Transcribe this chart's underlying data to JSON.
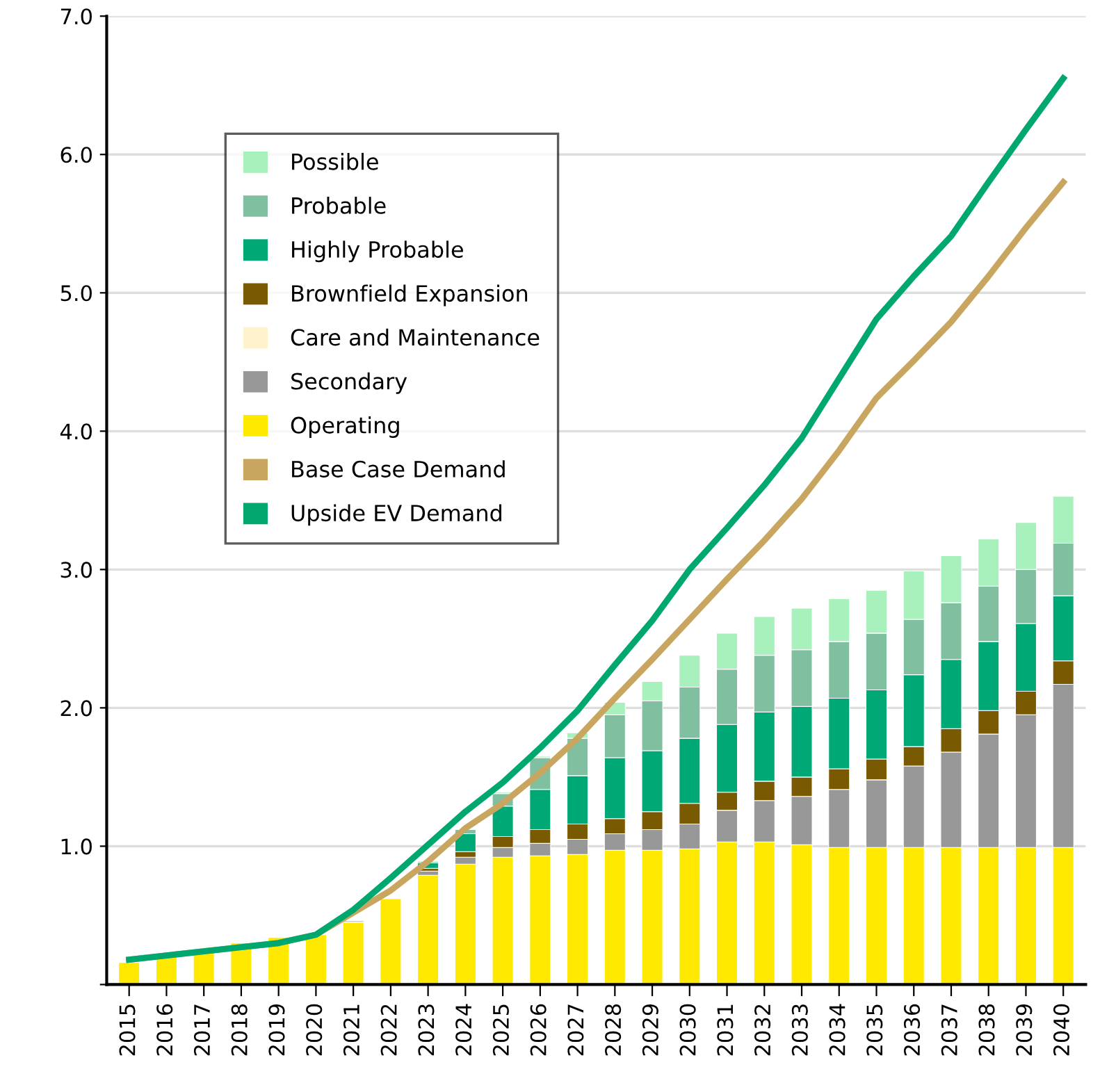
{
  "chart_data": {
    "type": "bar",
    "stacked": true,
    "categories": [
      "2015",
      "2016",
      "2017",
      "2018",
      "2019",
      "2020",
      "2021",
      "2022",
      "2023",
      "2024",
      "2025",
      "2026",
      "2027",
      "2028",
      "2029",
      "2030",
      "2031",
      "2032",
      "2033",
      "2034",
      "2035",
      "2036",
      "2037",
      "2038",
      "2039",
      "2040"
    ],
    "series": [
      {
        "name": "Operating",
        "color": "#ffe900",
        "values": [
          0.16,
          0.2,
          0.23,
          0.3,
          0.34,
          0.36,
          0.45,
          0.62,
          0.79,
          0.87,
          0.92,
          0.93,
          0.94,
          0.97,
          0.97,
          0.98,
          1.03,
          1.03,
          1.01,
          0.99,
          0.99,
          0.99,
          0.99,
          0.99,
          0.99,
          0.99
        ]
      },
      {
        "name": "Secondary",
        "color": "#989898",
        "values": [
          null,
          null,
          null,
          null,
          null,
          null,
          0.01,
          null,
          0.03,
          0.05,
          0.07,
          0.09,
          0.11,
          0.12,
          0.15,
          0.18,
          0.23,
          0.3,
          0.35,
          0.42,
          0.49,
          0.59,
          0.69,
          0.82,
          0.96,
          1.18
        ]
      },
      {
        "name": "Care and Maintenance",
        "color": "#fff2cc",
        "values": [
          null,
          null,
          null,
          null,
          null,
          null,
          null,
          null,
          null,
          null,
          null,
          null,
          null,
          null,
          null,
          null,
          null,
          null,
          null,
          null,
          null,
          null,
          null,
          null,
          null,
          null
        ]
      },
      {
        "name": "Brownfield Expansion",
        "color": "#7a5a00",
        "values": [
          null,
          null,
          null,
          null,
          null,
          null,
          null,
          null,
          0.02,
          0.04,
          0.08,
          0.1,
          0.11,
          0.11,
          0.13,
          0.15,
          0.13,
          0.14,
          0.14,
          0.15,
          0.15,
          0.14,
          0.17,
          0.17,
          0.17,
          0.17
        ]
      },
      {
        "name": "Highly Probable",
        "color": "#00a876",
        "values": [
          null,
          null,
          null,
          null,
          null,
          null,
          null,
          null,
          0.04,
          0.13,
          0.22,
          0.29,
          0.35,
          0.44,
          0.44,
          0.47,
          0.49,
          0.5,
          0.51,
          0.51,
          0.5,
          0.52,
          0.5,
          0.5,
          0.49,
          0.47
        ]
      },
      {
        "name": "Probable",
        "color": "#80c0a0",
        "values": [
          null,
          null,
          null,
          null,
          null,
          null,
          null,
          null,
          0.01,
          0.03,
          0.09,
          0.23,
          0.27,
          0.31,
          0.36,
          0.37,
          0.4,
          0.41,
          0.41,
          0.41,
          0.41,
          0.4,
          0.41,
          0.4,
          0.39,
          0.38
        ]
      },
      {
        "name": "Possible",
        "color": "#a8f0bc",
        "values": [
          null,
          null,
          null,
          null,
          null,
          null,
          null,
          null,
          null,
          null,
          0.01,
          0.01,
          0.04,
          0.09,
          0.14,
          0.23,
          0.26,
          0.28,
          0.3,
          0.31,
          0.31,
          0.35,
          0.34,
          0.34,
          0.34,
          0.34
        ]
      },
      {
        "name": "Base Case Demand",
        "type": "line",
        "color": "#c8a660",
        "values": [
          0.18,
          0.21,
          0.24,
          0.27,
          0.3,
          0.36,
          0.52,
          0.68,
          0.89,
          1.13,
          1.31,
          1.53,
          1.78,
          2.07,
          2.35,
          2.64,
          2.93,
          3.21,
          3.51,
          3.86,
          4.24,
          4.51,
          4.79,
          5.12,
          5.47,
          5.8
        ]
      },
      {
        "name": "Upside EV Demand",
        "type": "line",
        "color": "#00a870",
        "values": [
          0.18,
          0.21,
          0.24,
          0.27,
          0.3,
          0.36,
          0.54,
          0.77,
          1.01,
          1.25,
          1.46,
          1.71,
          1.98,
          2.31,
          2.63,
          3.0,
          3.3,
          3.61,
          3.95,
          4.38,
          4.81,
          5.12,
          5.41,
          5.8,
          6.18,
          6.55
        ]
      }
    ],
    "ylim": [
      0,
      7
    ],
    "yticks": [
      {
        "value": 0,
        "label": null
      },
      {
        "value": 1,
        "label": "1.0"
      },
      {
        "value": 2,
        "label": "2.0"
      },
      {
        "value": 3,
        "label": "3.0"
      },
      {
        "value": 4,
        "label": "4.0"
      },
      {
        "value": 5,
        "label": "5.0"
      },
      {
        "value": 6,
        "label": "6.0"
      },
      {
        "value": 7,
        "label": "7.0"
      }
    ],
    "grid": "y",
    "legend": "top left",
    "line_style": "solid",
    "marker": "none"
  }
}
